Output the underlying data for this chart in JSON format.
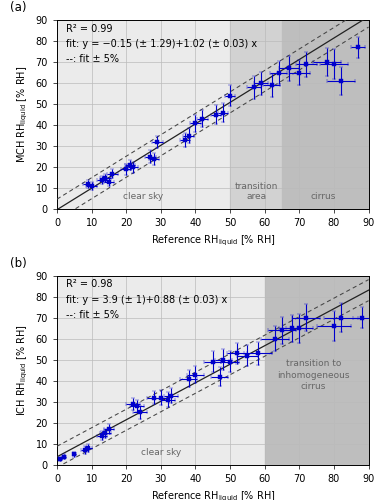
{
  "panel_a": {
    "title_label": "(a)",
    "xlabel": "Reference RH$_\\mathrm{liquid}$ [% RH]",
    "ylabel": "MCH RH$_\\mathrm{liquid}$ [% RH]",
    "xlim": [
      0,
      90
    ],
    "ylim": [
      0,
      90
    ],
    "xticks": [
      0,
      10,
      20,
      30,
      40,
      50,
      60,
      70,
      80,
      90
    ],
    "yticks": [
      0,
      10,
      20,
      30,
      40,
      50,
      60,
      70,
      80,
      90
    ],
    "fit_intercept": -0.15,
    "fit_slope": 1.02,
    "r2": "R² = 0.99",
    "fit_text": "fit: y = −0.15 (± 1.29)+1.02 (± 0.03) x",
    "dash_text": "--: fit ± 5%",
    "region1_end": 50,
    "region2_end": 65,
    "region1_label": "clear sky",
    "region2_label": "transition\narea",
    "region3_label": "cirrus",
    "data_x": [
      9,
      10,
      13,
      14,
      15,
      16,
      20,
      21,
      22,
      27,
      28,
      29,
      37,
      38,
      40,
      42,
      46,
      48,
      50,
      57,
      59,
      62,
      64,
      67,
      70,
      72,
      78,
      80,
      82,
      87
    ],
    "data_y": [
      12,
      11,
      14,
      15,
      13,
      17,
      19,
      21,
      20,
      25,
      24,
      32,
      33,
      35,
      41,
      43,
      45,
      46,
      54,
      58,
      60,
      59,
      65,
      67,
      65,
      69,
      70,
      69,
      61,
      77
    ],
    "xerr": [
      1.5,
      1.5,
      1.5,
      1.5,
      1.5,
      1.5,
      1.5,
      1.5,
      1.5,
      1.5,
      1.5,
      1.5,
      1.5,
      1.5,
      1.5,
      1.5,
      1.5,
      1.5,
      1.5,
      2.0,
      2.0,
      2.5,
      2.5,
      3.0,
      3.0,
      3.0,
      4.0,
      4.0,
      4.0,
      2.0
    ],
    "yerr": [
      2.0,
      2.0,
      2.0,
      2.0,
      2.0,
      2.0,
      2.5,
      2.5,
      2.5,
      3.0,
      3.0,
      3.0,
      3.5,
      3.5,
      4.0,
      4.0,
      4.5,
      4.5,
      5.0,
      5.5,
      5.5,
      5.5,
      5.5,
      6.0,
      6.0,
      6.0,
      6.5,
      7.0,
      6.5,
      5.0
    ]
  },
  "panel_b": {
    "title_label": "(b)",
    "xlabel": "Reference RH$_\\mathrm{liquid}$ [% RH]",
    "ylabel": "ICH RH$_\\mathrm{liquid}$ [% RH]",
    "xlim": [
      0,
      90
    ],
    "ylim": [
      0,
      90
    ],
    "xticks": [
      0,
      10,
      20,
      30,
      40,
      50,
      60,
      70,
      80,
      90
    ],
    "yticks": [
      0,
      10,
      20,
      30,
      40,
      50,
      60,
      70,
      80,
      90
    ],
    "fit_intercept": 3.9,
    "fit_slope": 0.88,
    "r2": "R² = 0.98",
    "fit_text": "fit: y = 3.9 (± 1)+0.88 (± 0.03) x",
    "dash_text": "--: fit ± 5%",
    "region1_end": 60,
    "region1_label": "clear sky",
    "region2_label": "transition to\ninhomogeneous\ncirrus",
    "data_x": [
      1,
      2,
      5,
      8,
      9,
      13,
      14,
      15,
      22,
      23,
      24,
      28,
      30,
      32,
      33,
      38,
      40,
      45,
      47,
      48,
      50,
      52,
      55,
      58,
      63,
      65,
      68,
      70,
      72,
      80,
      82,
      88
    ],
    "data_y": [
      3,
      4,
      5,
      7,
      8,
      14,
      15,
      17,
      29,
      28,
      25,
      32,
      32,
      31,
      33,
      41,
      43,
      49,
      42,
      50,
      49,
      53,
      52,
      53,
      60,
      64,
      65,
      65,
      70,
      66,
      70,
      70
    ],
    "xerr": [
      0.5,
      0.5,
      0.5,
      1.0,
      1.0,
      1.5,
      1.5,
      1.5,
      2.0,
      2.0,
      2.0,
      2.0,
      2.0,
      2.0,
      2.0,
      2.5,
      2.5,
      2.5,
      2.5,
      2.5,
      2.5,
      3.0,
      3.0,
      4.0,
      4.0,
      4.0,
      4.0,
      4.0,
      4.0,
      5.0,
      5.0,
      2.5
    ],
    "yerr": [
      1.0,
      1.0,
      1.0,
      2.0,
      2.0,
      2.0,
      2.0,
      2.5,
      3.0,
      3.0,
      3.0,
      3.0,
      3.5,
      3.5,
      3.5,
      4.0,
      4.0,
      5.0,
      4.5,
      5.0,
      5.0,
      5.0,
      5.0,
      5.5,
      6.0,
      6.5,
      6.5,
      7.0,
      6.5,
      7.0,
      7.0,
      5.0
    ]
  },
  "bg_clear": "#ebebeb",
  "bg_transition": "#d2d2d2",
  "bg_cirrus": "#bebebe",
  "data_color": "#0000cc",
  "fit_line_color": "#222222",
  "dash_line_color": "#444444",
  "grid_color": "#bbbbbb",
  "label_color": "#666666",
  "font_size": 7.0,
  "annot_font_size": 7.0,
  "marker_size": 3.0,
  "elinewidth": 0.8,
  "capsize": 1.5
}
